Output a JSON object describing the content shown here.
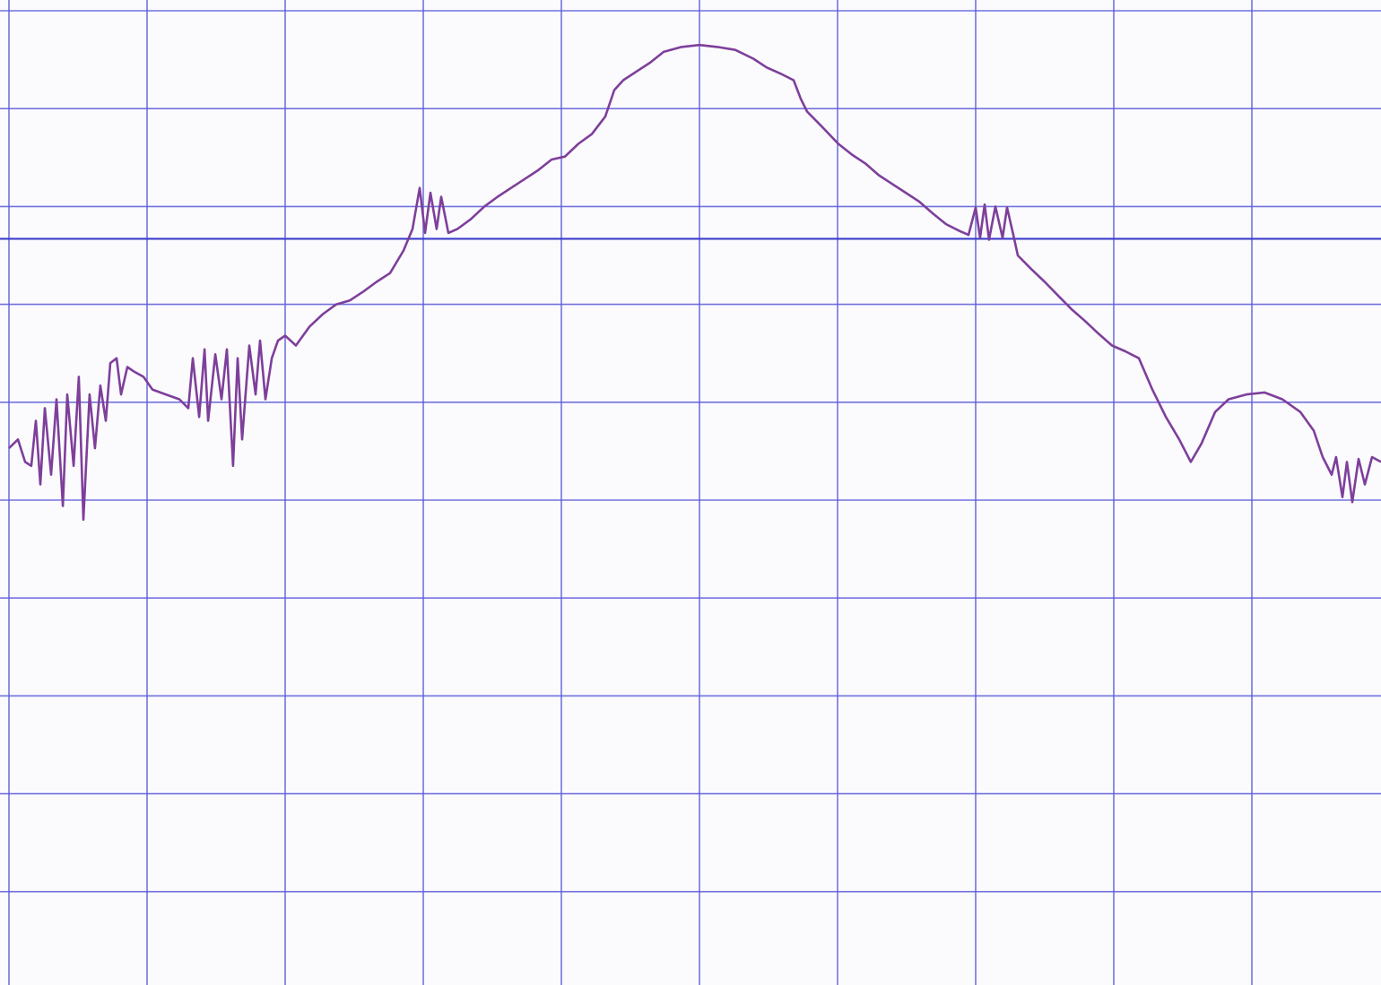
{
  "chart_data": {
    "type": "line",
    "x": [
      0.0,
      0.065,
      0.117,
      0.162,
      0.195,
      0.227,
      0.26,
      0.305,
      0.344,
      0.39,
      0.422,
      0.468,
      0.506,
      0.539,
      0.584,
      0.623,
      0.662,
      0.701,
      0.734,
      0.779,
      0.812,
      0.857,
      0.909,
      0.974,
      1.039,
      1.136,
      1.234,
      1.299,
      1.331,
      1.377,
      1.416,
      1.442,
      1.494,
      1.539,
      1.578,
      1.623,
      1.656,
      1.688,
      1.74,
      1.786,
      1.818,
      1.857,
      1.903,
      1.948,
      2.0,
      2.078,
      2.175,
      2.273,
      2.37,
      2.468,
      2.565,
      2.662,
      2.76,
      2.857,
      2.922,
      2.974,
      3.013,
      3.052,
      3.097,
      3.13,
      3.182,
      3.247,
      3.344,
      3.442,
      3.539,
      3.636,
      3.734,
      3.831,
      3.929,
      4.026,
      4.123,
      4.221,
      4.318,
      4.383,
      4.448,
      4.545,
      4.643,
      4.74,
      4.87,
      5.0,
      5.13,
      5.26,
      5.39,
      5.487,
      5.584,
      5.682,
      5.734,
      5.779,
      5.877,
      6.006,
      6.104,
      6.201,
      6.299,
      6.396,
      6.494,
      6.591,
      6.688,
      6.786,
      6.883,
      6.948,
      7.0,
      7.032,
      7.065,
      7.097,
      7.143,
      7.195,
      7.227,
      7.273,
      7.305,
      7.403,
      7.5,
      7.597,
      7.695,
      7.792,
      7.89,
      7.987,
      8.084,
      8.182,
      8.279,
      8.377,
      8.474,
      8.558,
      8.636,
      8.734,
      8.831,
      8.961,
      9.091,
      9.221,
      9.351,
      9.448,
      9.513,
      9.578,
      9.61,
      9.656,
      9.688,
      9.727,
      9.773,
      9.818,
      9.87,
      9.935
    ],
    "series": [
      {
        "color": "#7e3f9a",
        "values": [
          5.53,
          5.62,
          5.39,
          5.35,
          5.81,
          5.16,
          5.94,
          5.26,
          6.03,
          4.94,
          6.08,
          5.35,
          6.26,
          4.8,
          6.08,
          5.53,
          6.17,
          5.81,
          6.4,
          6.45,
          6.08,
          6.36,
          6.31,
          6.26,
          6.13,
          6.08,
          6.03,
          5.94,
          6.45,
          5.85,
          6.54,
          5.81,
          6.49,
          6.03,
          6.54,
          5.35,
          6.45,
          5.62,
          6.58,
          6.08,
          6.63,
          6.03,
          6.45,
          6.63,
          6.68,
          6.58,
          6.77,
          6.9,
          7.0,
          7.04,
          7.13,
          7.23,
          7.32,
          7.55,
          7.77,
          8.19,
          7.73,
          8.14,
          7.77,
          8.1,
          7.73,
          7.77,
          7.87,
          8.0,
          8.1,
          8.19,
          8.28,
          8.37,
          8.48,
          8.51,
          8.64,
          8.74,
          8.92,
          9.19,
          9.29,
          9.38,
          9.47,
          9.58,
          9.63,
          9.65,
          9.63,
          9.6,
          9.51,
          9.42,
          9.36,
          9.29,
          9.1,
          8.97,
          8.83,
          8.64,
          8.53,
          8.44,
          8.32,
          8.23,
          8.14,
          8.05,
          7.93,
          7.82,
          7.75,
          7.71,
          7.99,
          7.68,
          8.02,
          7.66,
          8.0,
          7.68,
          7.99,
          7.71,
          7.5,
          7.36,
          7.23,
          7.09,
          6.95,
          6.83,
          6.7,
          6.58,
          6.52,
          6.45,
          6.13,
          5.85,
          5.62,
          5.39,
          5.58,
          5.9,
          6.03,
          6.08,
          6.1,
          6.03,
          5.9,
          5.71,
          5.44,
          5.26,
          5.44,
          5.03,
          5.39,
          4.98,
          5.42,
          5.16,
          5.44,
          5.39
        ]
      }
    ],
    "xlim": [
      0,
      10
    ],
    "ylim": [
      0,
      10
    ],
    "xticks": [
      0,
      1,
      2,
      3,
      4,
      5,
      6,
      7,
      8,
      9,
      10
    ],
    "yticks": [
      0,
      1,
      2,
      3,
      4,
      5,
      6,
      7,
      8,
      9,
      10
    ],
    "grid": true,
    "grid_color": "#5b5bd8",
    "reference_line": 7.67,
    "reference_color": "#3c3cc8"
  }
}
